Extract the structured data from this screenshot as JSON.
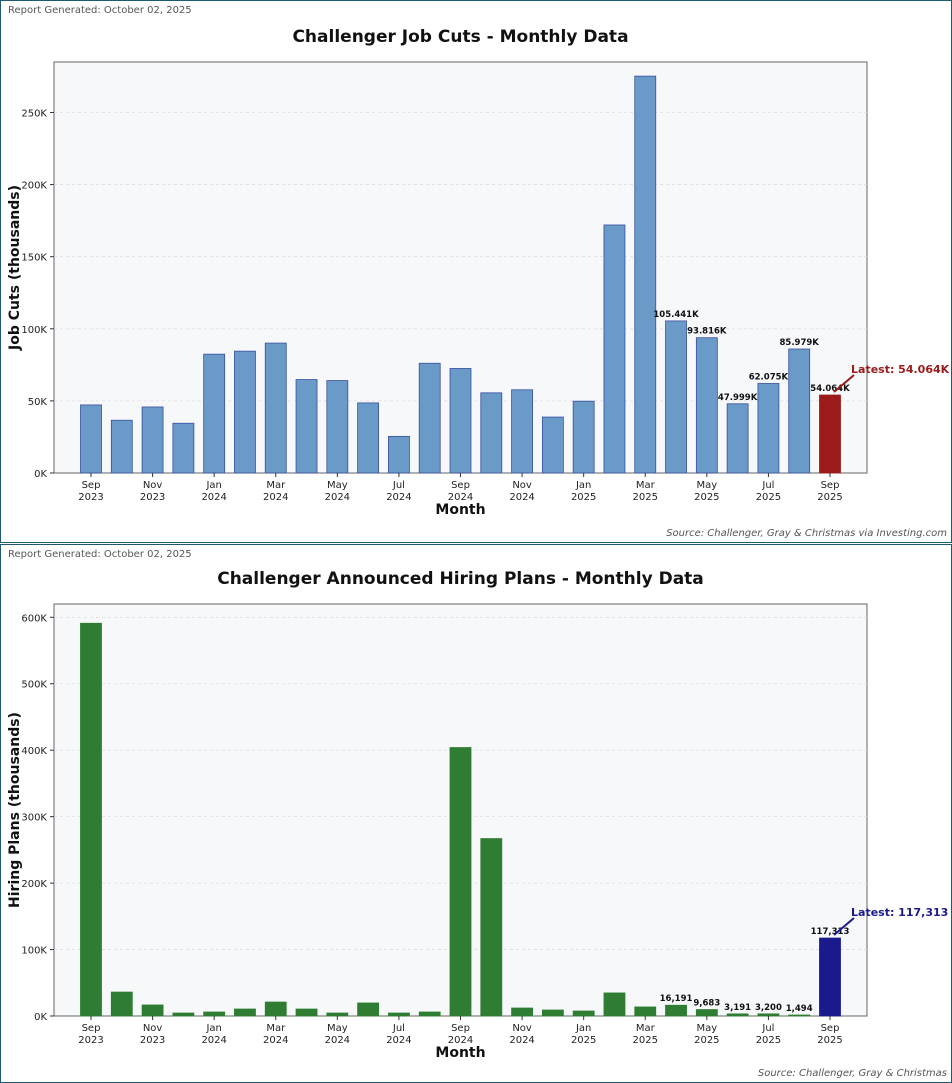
{
  "report_generated": "Report Generated: October 02, 2025",
  "chart_data": [
    {
      "type": "bar",
      "title": "Challenger Job Cuts - Monthly Data",
      "xlabel": "Month",
      "ylabel": "Job Cuts (thousands)",
      "ylim": [
        0,
        285
      ],
      "yticks": [
        0,
        50,
        100,
        150,
        200,
        250
      ],
      "ytick_labels": [
        "0K",
        "50K",
        "100K",
        "150K",
        "200K",
        "250K"
      ],
      "categories": [
        "Sep 2023",
        "Oct 2023",
        "Nov 2023",
        "Dec 2023",
        "Jan 2024",
        "Feb 2024",
        "Mar 2024",
        "Apr 2024",
        "May 2024",
        "Jun 2024",
        "Jul 2024",
        "Aug 2024",
        "Sep 2024",
        "Oct 2024",
        "Nov 2024",
        "Dec 2024",
        "Jan 2025",
        "Feb 2025",
        "Mar 2025",
        "Apr 2025",
        "May 2025",
        "Jun 2025",
        "Jul 2025",
        "Aug 2025",
        "Sep 2025"
      ],
      "xtick_labels": [
        [
          "Sep",
          "2023"
        ],
        [
          "Nov",
          "2023"
        ],
        [
          "Jan",
          "2024"
        ],
        [
          "Mar",
          "2024"
        ],
        [
          "May",
          "2024"
        ],
        [
          "Jul",
          "2024"
        ],
        [
          "Sep",
          "2024"
        ],
        [
          "Nov",
          "2024"
        ],
        [
          "Jan",
          "2025"
        ],
        [
          "Mar",
          "2025"
        ],
        [
          "May",
          "2025"
        ],
        [
          "Jul",
          "2025"
        ],
        [
          "Sep",
          "2025"
        ]
      ],
      "values": [
        47.2,
        36.6,
        45.8,
        34.5,
        82.4,
        84.5,
        90.1,
        64.8,
        64.1,
        48.6,
        25.4,
        76.1,
        72.5,
        55.6,
        57.7,
        38.8,
        49.8,
        172.0,
        275.2,
        105.441,
        93.816,
        47.999,
        62.075,
        85.979,
        54.064
      ],
      "data_labels": {
        "19": "105.441K",
        "20": "93.816K",
        "21": "47.999K",
        "22": "62.075K",
        "23": "85.979K",
        "24": "54.064K"
      },
      "annotation": "Latest: 54.064K",
      "bar_color": "#6a9ac7",
      "bar_edge": "#3a4fa0",
      "latest_color": "#9b1a1a",
      "grid": true,
      "source": "Source: Challenger, Gray & Christmas via Investing.com"
    },
    {
      "type": "bar",
      "title": "Challenger Announced Hiring Plans - Monthly Data",
      "xlabel": "Month",
      "ylabel": "Hiring Plans (thousands)",
      "ylim": [
        0,
        620
      ],
      "yticks": [
        0,
        100,
        200,
        300,
        400,
        500,
        600
      ],
      "ytick_labels": [
        "0K",
        "100K",
        "200K",
        "300K",
        "400K",
        "500K",
        "600K"
      ],
      "categories": [
        "Sep 2023",
        "Oct 2023",
        "Nov 2023",
        "Dec 2023",
        "Jan 2024",
        "Feb 2024",
        "Mar 2024",
        "Apr 2024",
        "May 2024",
        "Jun 2024",
        "Jul 2024",
        "Aug 2024",
        "Sep 2024",
        "Oct 2024",
        "Nov 2024",
        "Dec 2024",
        "Jan 2025",
        "Feb 2025",
        "Mar 2025",
        "Apr 2025",
        "May 2025",
        "Jun 2025",
        "Jul 2025",
        "Aug 2025",
        "Sep 2025"
      ],
      "xtick_labels": [
        [
          "Sep",
          "2023"
        ],
        [
          "Nov",
          "2023"
        ],
        [
          "Jan",
          "2024"
        ],
        [
          "Mar",
          "2024"
        ],
        [
          "May",
          "2024"
        ],
        [
          "Jul",
          "2024"
        ],
        [
          "Sep",
          "2024"
        ],
        [
          "Nov",
          "2024"
        ],
        [
          "Jan",
          "2025"
        ],
        [
          "Mar",
          "2025"
        ],
        [
          "May",
          "2025"
        ],
        [
          "Jul",
          "2025"
        ],
        [
          "Sep",
          "2025"
        ]
      ],
      "values": [
        591,
        36,
        16.6,
        4.5,
        6,
        10.5,
        21,
        10.5,
        4.5,
        19.6,
        4.5,
        6,
        404,
        267,
        12,
        9,
        7.5,
        34.7,
        13.6,
        16.191,
        9.683,
        3.191,
        3.2,
        1.494,
        117.313
      ],
      "data_labels": {
        "19": "16,191",
        "20": "9,683",
        "21": "3,191",
        "22": "3,200",
        "23": "1,494",
        "24": "117,313"
      },
      "annotation": "Latest: 117,313",
      "bar_color": "#2e7d32",
      "bar_edge": "#2e7d32",
      "latest_color": "#1a1a8c",
      "grid": true,
      "source": "Source: Challenger, Gray & Christmas"
    }
  ]
}
